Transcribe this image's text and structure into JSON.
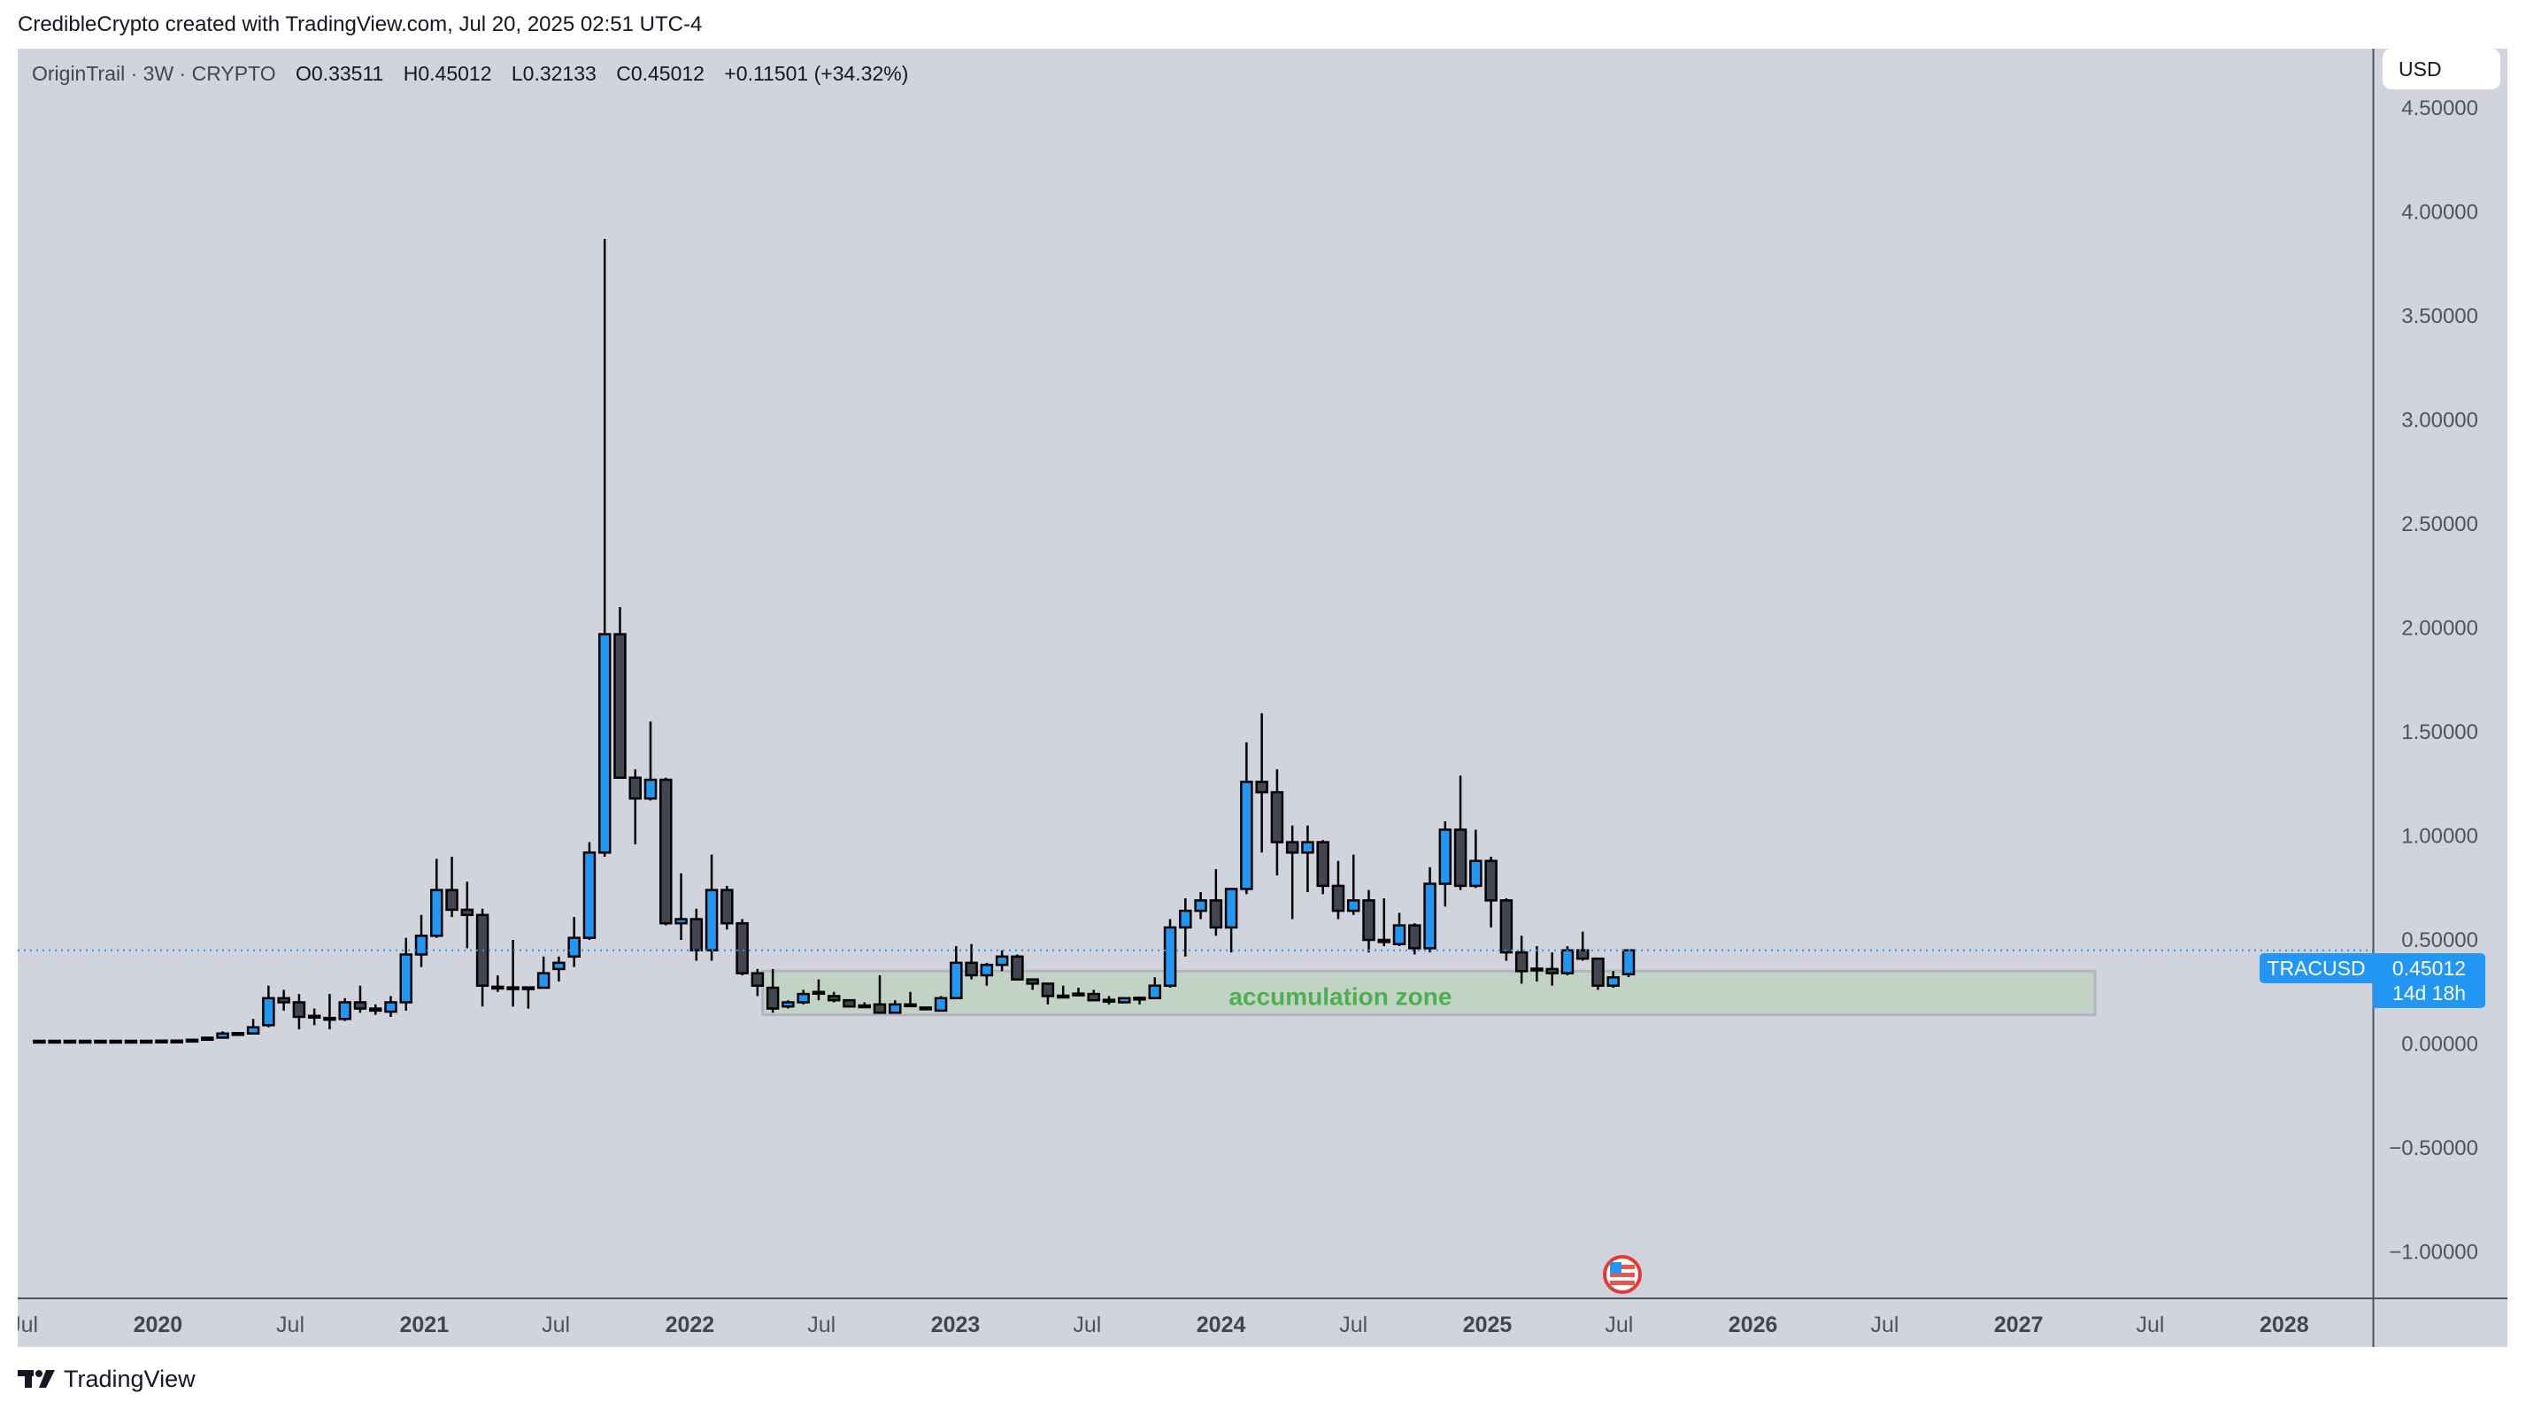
{
  "credit": "CredibleCrypto created with TradingView.com, Jul 20, 2025 02:51 UTC-4",
  "legend": {
    "title": "OriginTrail · 3W · CRYPTO",
    "open": {
      "label": "O",
      "value": "0.33511"
    },
    "high": {
      "label": "H",
      "value": "0.45012"
    },
    "low": {
      "label": "L",
      "value": "0.32133"
    },
    "close": {
      "label": "C",
      "value": "0.45012"
    },
    "change": "+0.11501 (+34.32%)"
  },
  "currency_button": "USD",
  "last_price": {
    "symbol": "TRACUSD",
    "value": "0.45012",
    "countdown": "14d 18h",
    "color": "#2196f3"
  },
  "brand": "TradingView",
  "event_icon": "us-flag-icon",
  "chart_data": {
    "type": "candlestick",
    "interval": "3W",
    "colors": {
      "up": "#2196f3",
      "down": "#434651",
      "border": "#000000",
      "background": "#d1d4dc"
    },
    "ylim": [
      -1.22,
      4.79
    ],
    "y_ticks": [
      "4.50000",
      "4.00000",
      "3.50000",
      "3.00000",
      "2.50000",
      "2.00000",
      "1.50000",
      "1.00000",
      "0.50000",
      "0.00000",
      "−0.50000",
      "−1.00000"
    ],
    "y_tick_values": [
      4.5,
      4,
      3.5,
      3,
      2.5,
      2,
      1.5,
      1,
      0.5,
      0,
      -0.5,
      -1
    ],
    "xlim": [
      "2019-06-24",
      "2028-05-01"
    ],
    "x_ticks": [
      {
        "date": "2019-07-01",
        "label": "Jul",
        "major": false
      },
      {
        "date": "2020-01-01",
        "label": "2020",
        "major": true
      },
      {
        "date": "2020-07-01",
        "label": "Jul",
        "major": false
      },
      {
        "date": "2021-01-01",
        "label": "2021",
        "major": true
      },
      {
        "date": "2021-07-01",
        "label": "Jul",
        "major": false
      },
      {
        "date": "2022-01-01",
        "label": "2022",
        "major": true
      },
      {
        "date": "2022-07-01",
        "label": "Jul",
        "major": false
      },
      {
        "date": "2023-01-01",
        "label": "2023",
        "major": true
      },
      {
        "date": "2023-07-01",
        "label": "Jul",
        "major": false
      },
      {
        "date": "2024-01-01",
        "label": "2024",
        "major": true
      },
      {
        "date": "2024-07-01",
        "label": "Jul",
        "major": false
      },
      {
        "date": "2025-01-01",
        "label": "2025",
        "major": true
      },
      {
        "date": "2025-07-01",
        "label": "Jul",
        "major": false
      },
      {
        "date": "2026-01-01",
        "label": "2026",
        "major": true
      },
      {
        "date": "2026-07-01",
        "label": "Jul",
        "major": false
      },
      {
        "date": "2027-01-01",
        "label": "2027",
        "major": true
      },
      {
        "date": "2027-07-01",
        "label": "Jul",
        "major": false
      },
      {
        "date": "2028-01-01",
        "label": "2028",
        "major": true
      }
    ],
    "price_line": 0.45012,
    "zone": {
      "label": "accumulation zone",
      "from": "2022-04-11",
      "to": "2027-04-16",
      "low": 0.14,
      "high": 0.35,
      "fill": "#c2d3c5",
      "text_color": "#4caf50",
      "label_date": "2024-06-13",
      "label_price": 0.23
    },
    "candles_columns": [
      "date",
      "open",
      "high",
      "low",
      "close"
    ],
    "candles": [
      [
        "2019-07-22",
        0.015,
        0.015,
        0.015,
        0.015
      ],
      [
        "2019-08-12",
        0.015,
        0.015,
        0.015,
        0.015
      ],
      [
        "2019-09-02",
        0.015,
        0.015,
        0.015,
        0.015
      ],
      [
        "2019-09-23",
        0.015,
        0.015,
        0.015,
        0.015
      ],
      [
        "2019-10-14",
        0.015,
        0.015,
        0.015,
        0.015
      ],
      [
        "2019-11-04",
        0.015,
        0.015,
        0.015,
        0.015
      ],
      [
        "2019-11-25",
        0.015,
        0.015,
        0.015,
        0.015
      ],
      [
        "2019-12-16",
        0.015,
        0.015,
        0.015,
        0.015
      ],
      [
        "2020-01-06",
        0.015,
        0.016,
        0.015,
        0.016
      ],
      [
        "2020-01-27",
        0.016,
        0.017,
        0.015,
        0.016
      ],
      [
        "2020-02-17",
        0.016,
        0.021,
        0.016,
        0.02
      ],
      [
        "2020-03-09",
        0.02,
        0.032,
        0.019,
        0.03
      ],
      [
        "2020-03-30",
        0.03,
        0.06,
        0.03,
        0.05
      ],
      [
        "2020-04-20",
        0.052,
        0.055,
        0.045,
        0.048
      ],
      [
        "2020-05-11",
        0.05,
        0.12,
        0.05,
        0.08
      ],
      [
        "2020-06-01",
        0.09,
        0.28,
        0.08,
        0.22
      ],
      [
        "2020-06-22",
        0.22,
        0.26,
        0.16,
        0.2
      ],
      [
        "2020-07-13",
        0.2,
        0.24,
        0.07,
        0.13
      ],
      [
        "2020-08-03",
        0.135,
        0.17,
        0.09,
        0.13
      ],
      [
        "2020-08-24",
        0.12,
        0.24,
        0.07,
        0.125
      ],
      [
        "2020-09-14",
        0.12,
        0.22,
        0.11,
        0.2
      ],
      [
        "2020-10-05",
        0.2,
        0.28,
        0.15,
        0.17
      ],
      [
        "2020-10-26",
        0.17,
        0.19,
        0.14,
        0.16
      ],
      [
        "2020-11-16",
        0.155,
        0.23,
        0.13,
        0.2
      ],
      [
        "2020-12-07",
        0.2,
        0.51,
        0.16,
        0.43
      ],
      [
        "2020-12-28",
        0.43,
        0.62,
        0.37,
        0.52
      ],
      [
        "2021-01-18",
        0.52,
        0.89,
        0.51,
        0.74
      ],
      [
        "2021-02-08",
        0.74,
        0.9,
        0.61,
        0.645
      ],
      [
        "2021-03-01",
        0.645,
        0.78,
        0.46,
        0.62
      ],
      [
        "2021-03-22",
        0.62,
        0.65,
        0.18,
        0.28
      ],
      [
        "2021-04-12",
        0.275,
        0.33,
        0.25,
        0.27
      ],
      [
        "2021-05-03",
        0.268,
        0.5,
        0.18,
        0.272
      ],
      [
        "2021-05-24",
        0.272,
        0.275,
        0.17,
        0.27
      ],
      [
        "2021-06-14",
        0.27,
        0.42,
        0.27,
        0.34
      ],
      [
        "2021-07-05",
        0.36,
        0.42,
        0.3,
        0.39
      ],
      [
        "2021-07-26",
        0.42,
        0.61,
        0.37,
        0.51
      ],
      [
        "2021-08-16",
        0.51,
        0.97,
        0.5,
        0.92
      ],
      [
        "2021-09-06",
        0.92,
        3.87,
        0.9,
        1.97
      ],
      [
        "2021-09-27",
        1.97,
        2.1,
        1.28,
        1.28
      ],
      [
        "2021-10-18",
        1.28,
        1.32,
        0.96,
        1.18
      ],
      [
        "2021-11-08",
        1.18,
        1.55,
        1.17,
        1.27
      ],
      [
        "2021-11-29",
        1.27,
        1.28,
        0.57,
        0.58
      ],
      [
        "2021-12-20",
        0.58,
        0.82,
        0.5,
        0.6
      ],
      [
        "2022-01-10",
        0.6,
        0.65,
        0.4,
        0.45
      ],
      [
        "2022-01-31",
        0.45,
        0.91,
        0.4,
        0.74
      ],
      [
        "2022-02-21",
        0.74,
        0.76,
        0.55,
        0.58
      ],
      [
        "2022-03-14",
        0.58,
        0.6,
        0.33,
        0.34
      ],
      [
        "2022-04-04",
        0.34,
        0.36,
        0.23,
        0.28
      ],
      [
        "2022-04-25",
        0.27,
        0.36,
        0.15,
        0.17
      ],
      [
        "2022-05-16",
        0.18,
        0.21,
        0.17,
        0.2
      ],
      [
        "2022-06-06",
        0.2,
        0.26,
        0.19,
        0.24
      ],
      [
        "2022-06-27",
        0.248,
        0.31,
        0.21,
        0.25
      ],
      [
        "2022-07-18",
        0.23,
        0.25,
        0.2,
        0.21
      ],
      [
        "2022-08-08",
        0.21,
        0.21,
        0.18,
        0.18
      ],
      [
        "2022-08-29",
        0.185,
        0.2,
        0.18,
        0.18
      ],
      [
        "2022-09-19",
        0.19,
        0.33,
        0.15,
        0.15
      ],
      [
        "2022-10-10",
        0.15,
        0.21,
        0.15,
        0.19
      ],
      [
        "2022-10-31",
        0.19,
        0.25,
        0.18,
        0.185
      ],
      [
        "2022-11-21",
        0.175,
        0.175,
        0.165,
        0.17
      ],
      [
        "2022-12-12",
        0.16,
        0.23,
        0.16,
        0.22
      ],
      [
        "2023-01-02",
        0.22,
        0.47,
        0.22,
        0.39
      ],
      [
        "2023-01-23",
        0.39,
        0.48,
        0.31,
        0.33
      ],
      [
        "2023-02-13",
        0.33,
        0.39,
        0.28,
        0.38
      ],
      [
        "2023-03-06",
        0.38,
        0.45,
        0.35,
        0.42
      ],
      [
        "2023-03-27",
        0.42,
        0.43,
        0.31,
        0.31
      ],
      [
        "2023-04-17",
        0.31,
        0.31,
        0.26,
        0.29
      ],
      [
        "2023-05-08",
        0.29,
        0.29,
        0.19,
        0.23
      ],
      [
        "2023-05-29",
        0.232,
        0.28,
        0.23,
        0.228
      ],
      [
        "2023-06-19",
        0.242,
        0.27,
        0.24,
        0.238
      ],
      [
        "2023-07-10",
        0.24,
        0.26,
        0.21,
        0.21
      ],
      [
        "2023-07-31",
        0.212,
        0.23,
        0.19,
        0.208
      ],
      [
        "2023-08-21",
        0.2,
        0.22,
        0.2,
        0.22
      ],
      [
        "2023-09-11",
        0.222,
        0.222,
        0.19,
        0.218
      ],
      [
        "2023-10-02",
        0.22,
        0.32,
        0.22,
        0.28
      ],
      [
        "2023-10-23",
        0.28,
        0.6,
        0.27,
        0.56
      ],
      [
        "2023-11-13",
        0.56,
        0.7,
        0.42,
        0.64
      ],
      [
        "2023-12-04",
        0.64,
        0.73,
        0.6,
        0.69
      ],
      [
        "2023-12-25",
        0.69,
        0.84,
        0.52,
        0.56
      ],
      [
        "2024-01-15",
        0.56,
        0.75,
        0.44,
        0.745
      ],
      [
        "2024-02-05",
        0.745,
        1.45,
        0.72,
        1.26
      ],
      [
        "2024-02-26",
        1.26,
        1.59,
        0.92,
        1.21
      ],
      [
        "2024-03-18",
        1.21,
        1.32,
        0.81,
        0.97
      ],
      [
        "2024-04-08",
        0.97,
        1.05,
        0.6,
        0.92
      ],
      [
        "2024-04-29",
        0.92,
        1.05,
        0.73,
        0.97
      ],
      [
        "2024-05-20",
        0.97,
        0.98,
        0.72,
        0.76
      ],
      [
        "2024-06-10",
        0.76,
        0.88,
        0.6,
        0.64
      ],
      [
        "2024-07-01",
        0.64,
        0.91,
        0.62,
        0.69
      ],
      [
        "2024-07-22",
        0.69,
        0.74,
        0.44,
        0.5
      ],
      [
        "2024-08-12",
        0.5,
        0.7,
        0.47,
        0.49
      ],
      [
        "2024-09-02",
        0.48,
        0.63,
        0.47,
        0.57
      ],
      [
        "2024-09-23",
        0.57,
        0.58,
        0.43,
        0.46
      ],
      [
        "2024-10-14",
        0.46,
        0.85,
        0.44,
        0.77
      ],
      [
        "2024-11-04",
        0.77,
        1.07,
        0.66,
        1.03
      ],
      [
        "2024-11-25",
        1.03,
        1.29,
        0.74,
        0.76
      ],
      [
        "2024-12-16",
        0.76,
        1.03,
        0.75,
        0.88
      ],
      [
        "2025-01-06",
        0.88,
        0.9,
        0.56,
        0.69
      ],
      [
        "2025-01-27",
        0.69,
        0.7,
        0.4,
        0.44
      ],
      [
        "2025-02-17",
        0.44,
        0.52,
        0.29,
        0.35
      ],
      [
        "2025-03-10",
        0.362,
        0.47,
        0.3,
        0.358
      ],
      [
        "2025-03-31",
        0.36,
        0.44,
        0.28,
        0.34
      ],
      [
        "2025-04-21",
        0.34,
        0.47,
        0.33,
        0.45
      ],
      [
        "2025-05-12",
        0.45,
        0.54,
        0.4,
        0.41
      ],
      [
        "2025-06-02",
        0.41,
        0.41,
        0.26,
        0.28
      ],
      [
        "2025-06-23",
        0.28,
        0.35,
        0.27,
        0.32
      ],
      [
        "2025-07-14",
        0.33511,
        0.45012,
        0.32133,
        0.45012
      ]
    ]
  }
}
